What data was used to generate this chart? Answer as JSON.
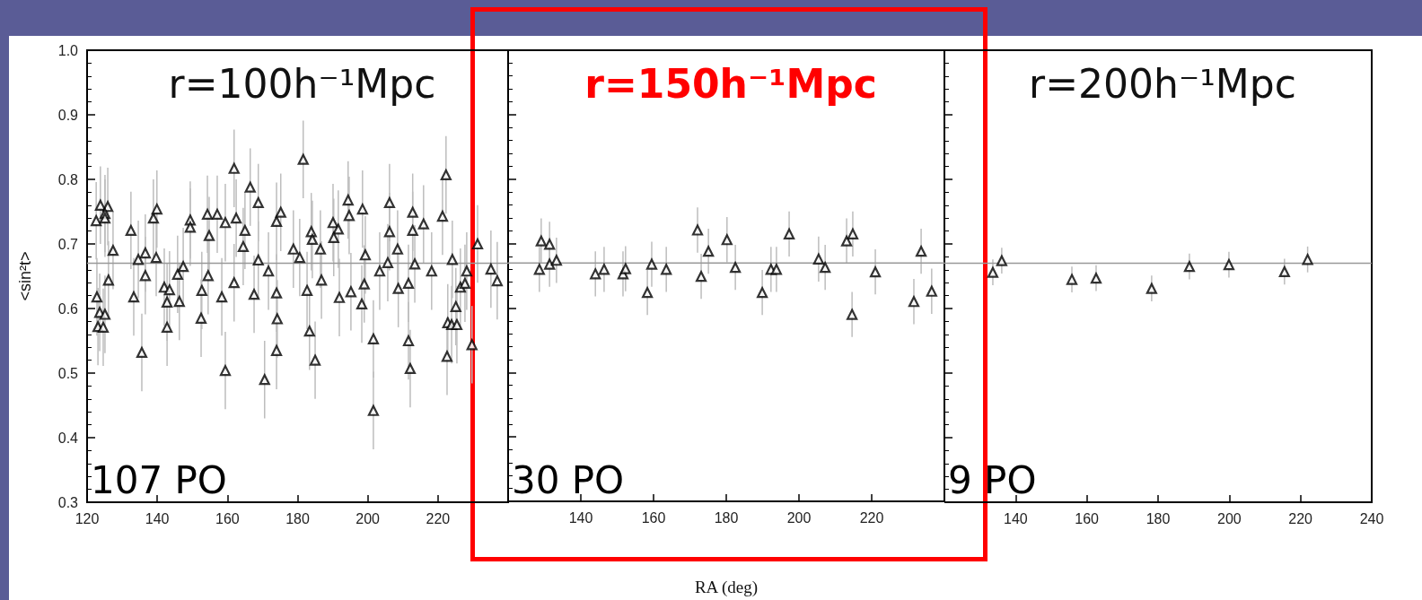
{
  "chart_data": [
    {
      "type": "scatter",
      "title": "r=100h⁻¹Mpc",
      "ylabel": "<sin²t>",
      "annotations": [
        "107 PO"
      ],
      "marker": "triangle",
      "grid": false,
      "xlim": [
        120,
        240
      ],
      "xticks": [
        120,
        140,
        160,
        180,
        200,
        220
      ],
      "ylim": [
        0.3,
        1.0
      ],
      "yticks": [
        0.3,
        0.4,
        0.5,
        0.6,
        0.7,
        0.8,
        0.9,
        {
          "value": 1.0,
          "label": "1.0"
        }
      ],
      "ref_lines": [
        {
          "axis": "y",
          "value": 0.67,
          "label": null,
          "color": "#999999"
        }
      ],
      "series": [
        {
          "color": "#000000",
          "x": [
            122.6,
            123.8,
            125.9,
            125.1,
            125.1,
            122.8,
            123.6,
            125.1,
            123.1,
            124.6,
            126.1,
            127.4,
            132.5,
            133.3,
            134.6,
            136.6,
            136.6,
            135.6,
            138.9,
            139.9,
            139.7,
            142,
            143.5,
            142.8,
            142.8,
            145.8,
            147.4,
            146.3,
            149.4,
            149.4,
            152.7,
            152.5,
            154.3,
            154.8,
            154.5,
            157.1,
            159.4,
            158.4,
            159.4,
            161.9,
            162.5,
            161.9,
            165,
            164.5,
            166.5,
            168.8,
            168.8,
            167.6,
            171.7,
            174,
            175.2,
            174,
            174.2,
            174,
            170.6,
            178.8,
            181.6,
            180.6,
            182.7,
            183.9,
            184.2,
            183.4,
            185,
            186.5,
            186.8,
            190.1,
            191.6,
            190.3,
            191.9,
            194.4,
            194.7,
            195.2,
            198.5,
            199.3,
            199,
            198.3,
            201.6,
            201.6,
            203.4,
            205.7,
            206.2,
            206.2,
            208.5,
            208.7,
            211.6,
            211.6,
            212.1,
            212.8,
            212.8,
            213.4,
            215.9,
            218.2,
            221.3,
            222.3,
            224.1,
            222.8,
            223.9,
            225.4,
            222.6,
            225.1,
            226.4,
            227.7,
            228.2,
            229.7,
            231.3,
            235.1,
            236.9
          ],
          "values": [
            0.736,
            0.76,
            0.758,
            0.747,
            0.74,
            0.618,
            0.594,
            0.591,
            0.572,
            0.571,
            0.644,
            0.69,
            0.721,
            0.618,
            0.676,
            0.686,
            0.651,
            0.532,
            0.74,
            0.754,
            0.679,
            0.633,
            0.629,
            0.61,
            0.571,
            0.653,
            0.665,
            0.611,
            0.737,
            0.726,
            0.628,
            0.585,
            0.746,
            0.713,
            0.651,
            0.746,
            0.733,
            0.618,
            0.504,
            0.817,
            0.74,
            0.64,
            0.721,
            0.696,
            0.788,
            0.764,
            0.675,
            0.622,
            0.658,
            0.735,
            0.749,
            0.624,
            0.584,
            0.535,
            0.49,
            0.692,
            0.831,
            0.679,
            0.628,
            0.719,
            0.707,
            0.565,
            0.52,
            0.692,
            0.644,
            0.733,
            0.723,
            0.71,
            0.617,
            0.768,
            0.744,
            0.626,
            0.754,
            0.683,
            0.638,
            0.607,
            0.553,
            0.442,
            0.658,
            0.671,
            0.764,
            0.719,
            0.692,
            0.631,
            0.639,
            0.55,
            0.507,
            0.749,
            0.721,
            0.669,
            0.731,
            0.658,
            0.743,
            0.807,
            0.676,
            0.578,
            0.575,
            0.575,
            0.526,
            0.603,
            0.633,
            0.639,
            0.658,
            0.544,
            0.7,
            0.661,
            0.643
          ],
          "errors": [
            0.06,
            0.06,
            0.06,
            0.06,
            0.06,
            0.06,
            0.06,
            0.06,
            0.06,
            0.06,
            0.06,
            0.06,
            0.06,
            0.06,
            0.06,
            0.06,
            0.06,
            0.06,
            0.06,
            0.06,
            0.06,
            0.06,
            0.06,
            0.06,
            0.06,
            0.06,
            0.06,
            0.06,
            0.06,
            0.06,
            0.06,
            0.06,
            0.06,
            0.06,
            0.06,
            0.06,
            0.06,
            0.06,
            0.06,
            0.06,
            0.06,
            0.06,
            0.06,
            0.06,
            0.06,
            0.06,
            0.06,
            0.06,
            0.06,
            0.06,
            0.06,
            0.06,
            0.06,
            0.06,
            0.06,
            0.06,
            0.06,
            0.06,
            0.06,
            0.06,
            0.06,
            0.06,
            0.06,
            0.06,
            0.06,
            0.06,
            0.06,
            0.06,
            0.06,
            0.06,
            0.06,
            0.06,
            0.06,
            0.06,
            0.06,
            0.06,
            0.06,
            0.06,
            0.06,
            0.06,
            0.06,
            0.06,
            0.06,
            0.06,
            0.06,
            0.06,
            0.06,
            0.06,
            0.06,
            0.06,
            0.06,
            0.06,
            0.06,
            0.06,
            0.06,
            0.06,
            0.06,
            0.06,
            0.06,
            0.06,
            0.06,
            0.06,
            0.06,
            0.06,
            0.06,
            0.06,
            0.06
          ]
        }
      ]
    },
    {
      "type": "scatter",
      "title": "r=150h⁻¹Mpc",
      "xlabel": "RA (deg)",
      "annotations": [
        "30 PO"
      ],
      "marker": "triangle",
      "grid": false,
      "tick_labels": "x",
      "xlim": [
        120,
        240
      ],
      "xticks": [
        140,
        160,
        180,
        200,
        220
      ],
      "ylim": [
        0.3,
        1.0
      ],
      "yticks": [
        0.3,
        0.4,
        0.5,
        0.6,
        0.7,
        0.8,
        0.9,
        1.0
      ],
      "ref_lines": [
        {
          "axis": "y",
          "value": 0.67,
          "label": null,
          "color": "#999999"
        }
      ],
      "series": [
        {
          "color": "#000000",
          "x": [
            128.6,
            129.1,
            131.4,
            131.4,
            133.3,
            144,
            146.4,
            151.6,
            152.3,
            158.3,
            159.5,
            163.5,
            172.1,
            173.1,
            175.1,
            180.2,
            182.5,
            189.9,
            192.3,
            193.8,
            197.3,
            205.4,
            207.2,
            213.1,
            214.8,
            214.6,
            221,
            231.6,
            233.6,
            236.5
          ],
          "values": [
            0.66,
            0.704,
            0.699,
            0.668,
            0.674,
            0.653,
            0.66,
            0.653,
            0.661,
            0.624,
            0.668,
            0.66,
            0.721,
            0.649,
            0.688,
            0.706,
            0.663,
            0.624,
            0.66,
            0.66,
            0.715,
            0.676,
            0.663,
            0.704,
            0.715,
            0.59,
            0.656,
            0.61,
            0.688,
            0.626
          ],
          "errors": [
            0.035,
            0.035,
            0.035,
            0.035,
            0.035,
            0.035,
            0.035,
            0.035,
            0.035,
            0.035,
            0.035,
            0.035,
            0.035,
            0.035,
            0.035,
            0.035,
            0.035,
            0.035,
            0.035,
            0.035,
            0.035,
            0.035,
            0.035,
            0.035,
            0.035,
            0.035,
            0.035,
            0.035,
            0.035,
            0.035
          ]
        }
      ]
    },
    {
      "type": "scatter",
      "title": "r=200h⁻¹Mpc",
      "annotations": [
        "9 PO"
      ],
      "marker": "triangle",
      "grid": false,
      "tick_labels": "x",
      "xlim": [
        120,
        240
      ],
      "xticks": [
        140,
        160,
        180,
        200,
        220,
        240
      ],
      "ylim": [
        0.3,
        1.0
      ],
      "yticks": [
        0.3,
        0.4,
        0.5,
        0.6,
        0.7,
        0.8,
        0.9,
        1.0
      ],
      "ref_lines": [
        {
          "axis": "y",
          "value": 0.67,
          "label": null,
          "color": "#999999"
        }
      ],
      "series": [
        {
          "color": "#000000",
          "x": [
            133.6,
            136.1,
            155.8,
            162.6,
            178.2,
            188.8,
            199.9,
            215.5,
            222
          ],
          "values": [
            0.656,
            0.674,
            0.645,
            0.647,
            0.631,
            0.665,
            0.668,
            0.657,
            0.676
          ],
          "errors": [
            0.02,
            0.02,
            0.02,
            0.02,
            0.02,
            0.02,
            0.02,
            0.02,
            0.02
          ]
        }
      ]
    }
  ]
}
